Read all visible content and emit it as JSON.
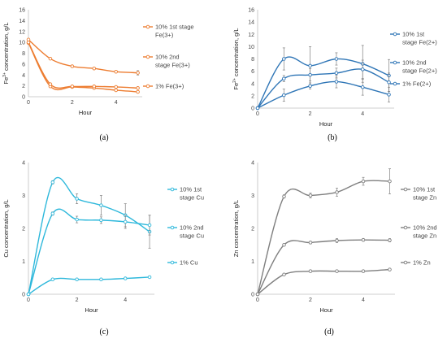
{
  "chart_data": [
    {
      "type": "line",
      "panel_label": "(a)",
      "xlabel": "Hour",
      "ylabel_parts": [
        "Fe",
        "3+",
        " concentration, g/L"
      ],
      "xlim": [
        0,
        5.2
      ],
      "xticks": [
        0,
        2,
        4
      ],
      "ylim": [
        0,
        16
      ],
      "yticks": [
        0,
        2,
        4,
        6,
        8,
        10,
        12,
        14,
        16
      ],
      "color": "#ED7D31",
      "grid": false,
      "legend_position": "right",
      "series": [
        {
          "name": "10% 1st stage Fe(3+)",
          "legend_lines": [
            "10% 1st stage",
            "Fe(3+)"
          ],
          "x": [
            0,
            1,
            2,
            3,
            4,
            5
          ],
          "y": [
            9.9,
            1.9,
            1.8,
            1.6,
            1.2,
            0.9
          ],
          "err": [
            0,
            0.2,
            0.2,
            0.2,
            0.2,
            0.2
          ]
        },
        {
          "name": "10% 2nd stage Fe(3+)",
          "legend_lines": [
            "10% 2nd",
            "stage Fe(3+)"
          ],
          "x": [
            0,
            1,
            2,
            3,
            4,
            5
          ],
          "y": [
            10.0,
            2.3,
            1.9,
            1.9,
            1.8,
            1.6
          ],
          "err": [
            0,
            0.2,
            0.2,
            0.2,
            0.2,
            0.2
          ]
        },
        {
          "name": "1% Fe(3+)",
          "legend_lines": [
            "1% Fe(3+)"
          ],
          "x": [
            0,
            1,
            2,
            3,
            4,
            5
          ],
          "y": [
            10.5,
            7.0,
            5.6,
            5.2,
            4.6,
            4.4
          ],
          "err": [
            0,
            0.2,
            0.2,
            0.2,
            0.2,
            0.4
          ]
        }
      ]
    },
    {
      "type": "line",
      "panel_label": "(b)",
      "xlabel": "Hour",
      "ylabel_parts": [
        "Fe",
        "2+",
        " concentration, g/L"
      ],
      "xlim": [
        0,
        5.2
      ],
      "xticks": [
        0,
        2,
        4
      ],
      "ylim": [
        0,
        16
      ],
      "yticks": [
        0,
        2,
        4,
        6,
        8,
        10,
        12,
        14,
        16
      ],
      "color": "#2E75B6",
      "grid": false,
      "legend_position": "right",
      "series": [
        {
          "name": "10% 1st stage Fe(2+)",
          "legend_lines": [
            "10% 1st",
            "stage Fe(2+)"
          ],
          "x": [
            0,
            1,
            2,
            3,
            4,
            5
          ],
          "y": [
            0,
            8.0,
            6.9,
            8.0,
            7.2,
            5.3
          ],
          "err": [
            0,
            1.8,
            3.1,
            1.0,
            3.0,
            2.6
          ]
        },
        {
          "name": "10% 2nd stage Fe(2+)",
          "legend_lines": [
            "10% 2nd",
            "stage Fe(2+)"
          ],
          "x": [
            0,
            1,
            2,
            3,
            4,
            5
          ],
          "y": [
            0,
            4.8,
            5.4,
            5.7,
            6.3,
            4.2
          ],
          "err": [
            0,
            0.5,
            1.0,
            0.8,
            1.5,
            1.5
          ]
        },
        {
          "name": "1% Fe(2+)",
          "legend_lines": [
            "1% Fe(2+)"
          ],
          "x": [
            0,
            1,
            2,
            3,
            4,
            5
          ],
          "y": [
            0,
            2.1,
            3.6,
            4.3,
            3.4,
            2.2
          ],
          "err": [
            0,
            1.0,
            0.5,
            1.0,
            1.3,
            1.2
          ]
        }
      ]
    },
    {
      "type": "line",
      "panel_label": "(c)",
      "xlabel": "Hour",
      "ylabel_parts": [
        "Cu concentration, g/L"
      ],
      "xlim": [
        0,
        5.2
      ],
      "xticks": [
        0,
        2,
        4
      ],
      "ylim": [
        0,
        4
      ],
      "yticks": [
        0,
        1,
        2,
        3,
        4
      ],
      "color": "#2EB8DB",
      "grid": false,
      "legend_position": "right",
      "series": [
        {
          "name": "10% 1st stage Cu",
          "legend_lines": [
            "10% 1st",
            "stage Cu"
          ],
          "x": [
            0,
            1,
            2,
            3,
            4,
            5
          ],
          "y": [
            0,
            3.4,
            2.9,
            2.7,
            2.4,
            1.9
          ],
          "err": [
            0,
            0.05,
            0.15,
            0.3,
            0.35,
            0.5
          ]
        },
        {
          "name": "10% 2nd stage Cu",
          "legend_lines": [
            "10% 2nd",
            "stage Cu"
          ],
          "x": [
            0,
            1,
            2,
            3,
            4,
            5
          ],
          "y": [
            0,
            2.45,
            2.27,
            2.25,
            2.2,
            2.1
          ],
          "err": [
            0,
            0.05,
            0.1,
            0.1,
            0.2,
            0.3
          ]
        },
        {
          "name": "1% Cu",
          "legend_lines": [
            "1% Cu"
          ],
          "x": [
            0,
            1,
            2,
            3,
            4,
            5
          ],
          "y": [
            0,
            0.45,
            0.45,
            0.45,
            0.48,
            0.52
          ],
          "err": [
            0,
            0.02,
            0.02,
            0.02,
            0.02,
            0.03
          ]
        }
      ]
    },
    {
      "type": "line",
      "panel_label": "(d)",
      "xlabel": "Hour",
      "ylabel_parts": [
        "Zn concentration, g/L"
      ],
      "xlim": [
        0,
        5.2
      ],
      "xticks": [
        0,
        2,
        4
      ],
      "ylim": [
        0,
        4
      ],
      "yticks": [
        0,
        1,
        2,
        3,
        4
      ],
      "color": "#7F7F7F",
      "grid": false,
      "legend_position": "right",
      "series": [
        {
          "name": "10% 1st stage Zn",
          "legend_lines": [
            "10% 1st",
            "stage Zn"
          ],
          "x": [
            0,
            1,
            2,
            3,
            4,
            5
          ],
          "y": [
            0,
            2.97,
            3.0,
            3.1,
            3.43,
            3.43
          ],
          "err": [
            0,
            0.05,
            0.07,
            0.12,
            0.12,
            0.38
          ]
        },
        {
          "name": "10% 2nd stage Zn",
          "legend_lines": [
            "10% 2nd",
            "stage Zn"
          ],
          "x": [
            0,
            1,
            2,
            3,
            4,
            5
          ],
          "y": [
            0,
            1.5,
            1.57,
            1.63,
            1.65,
            1.64
          ],
          "err": [
            0,
            0.03,
            0.04,
            0.06,
            0.04,
            0.05
          ]
        },
        {
          "name": "1% Zn",
          "legend_lines": [
            "1% Zn"
          ],
          "x": [
            0,
            1,
            2,
            3,
            4,
            5
          ],
          "y": [
            0,
            0.6,
            0.7,
            0.7,
            0.7,
            0.75
          ],
          "err": [
            0,
            0.02,
            0.02,
            0.02,
            0.02,
            0.03
          ]
        }
      ]
    }
  ]
}
